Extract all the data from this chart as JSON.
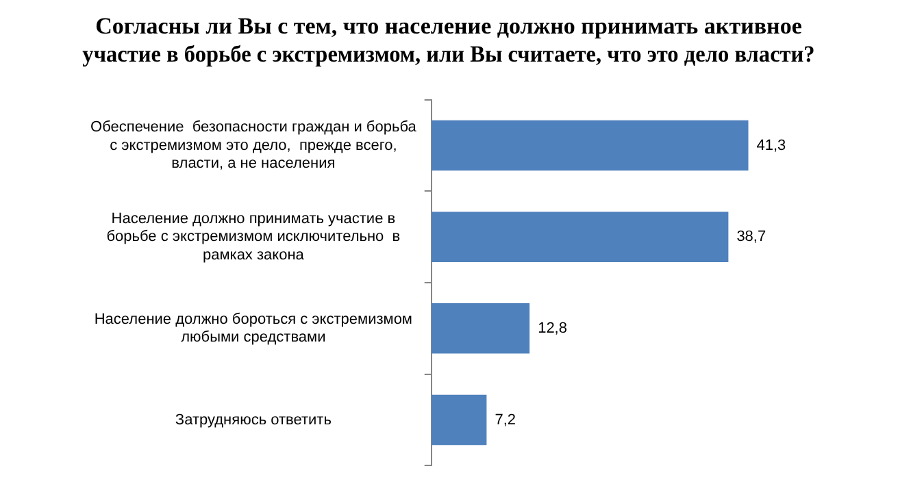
{
  "chart_data": {
    "type": "bar",
    "orientation": "horizontal",
    "title": "Согласны ли Вы с тем, что население должно принимать активное участие в борьбе с экстремизмом, или Вы считаете, что это дело власти?",
    "categories": [
      "Обеспечение  безопасности граждан и борьба с экстремизмом это дело,  прежде всего, власти, а не населения",
      "Население должно принимать участие в борьбе с экстремизмом исключительно  в рамках закона",
      "Население должно бороться с экстремизмом любыми средствами",
      "Затрудняюсь ответить"
    ],
    "values": [
      41.3,
      38.7,
      12.8,
      7.2
    ],
    "value_labels": [
      "41,3",
      "38,7",
      "12,8",
      "7,2"
    ],
    "color": "#4f81bd",
    "legend": false
  }
}
